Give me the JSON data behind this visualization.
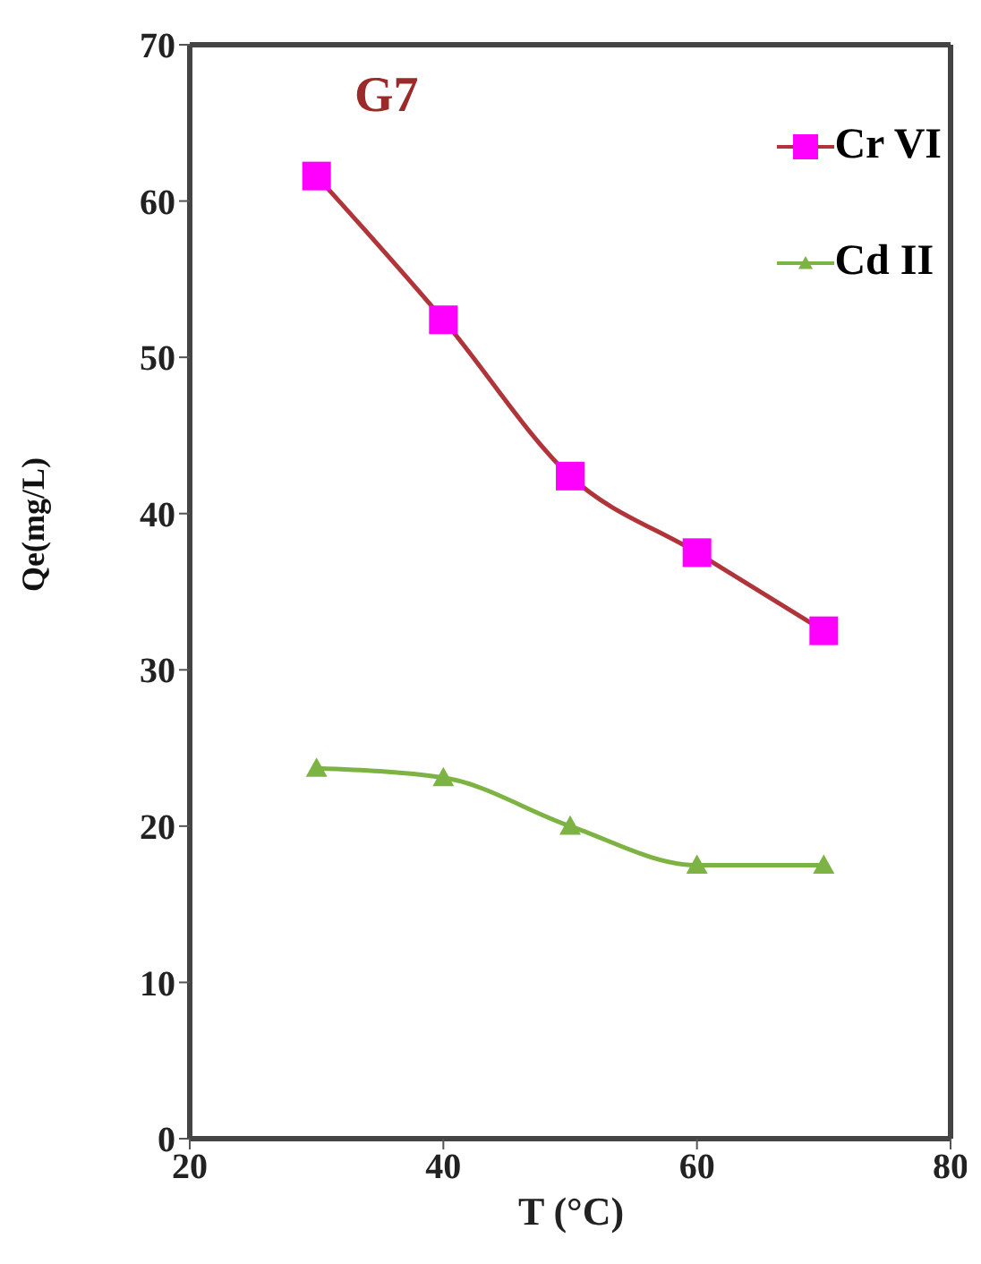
{
  "chart_data": {
    "type": "line",
    "title": "G7",
    "xlabel": "T (°C)",
    "ylabel": "Qe(mg/L)",
    "x": [
      30,
      40,
      50,
      60,
      70
    ],
    "series": [
      {
        "name": "Cr VI",
        "color": "#b0353a",
        "colors": [
          "#ff00ff",
          "#ff00ff",
          "#ff00ff",
          "#ff00ff",
          "#ff00ff"
        ],
        "marker": "square",
        "values": [
          61.6,
          52.4,
          42.4,
          37.5,
          32.5
        ]
      },
      {
        "name": "Cd II",
        "color": "#7cb342",
        "colors": [
          "#7cb342",
          "#7cb342",
          "#7cb342",
          "#7cb342",
          "#7cb342"
        ],
        "marker": "triangle",
        "values": [
          23.7,
          23.1,
          20,
          17.5,
          17.5
        ]
      }
    ],
    "xlim": [
      20,
      80
    ],
    "xticks": [
      20,
      40,
      60,
      80
    ],
    "ylim": [
      0,
      70
    ],
    "yticks": [
      0,
      10,
      20,
      30,
      40,
      50,
      60,
      70
    ],
    "grid": false,
    "legend": "top right",
    "line_style": "solid"
  }
}
